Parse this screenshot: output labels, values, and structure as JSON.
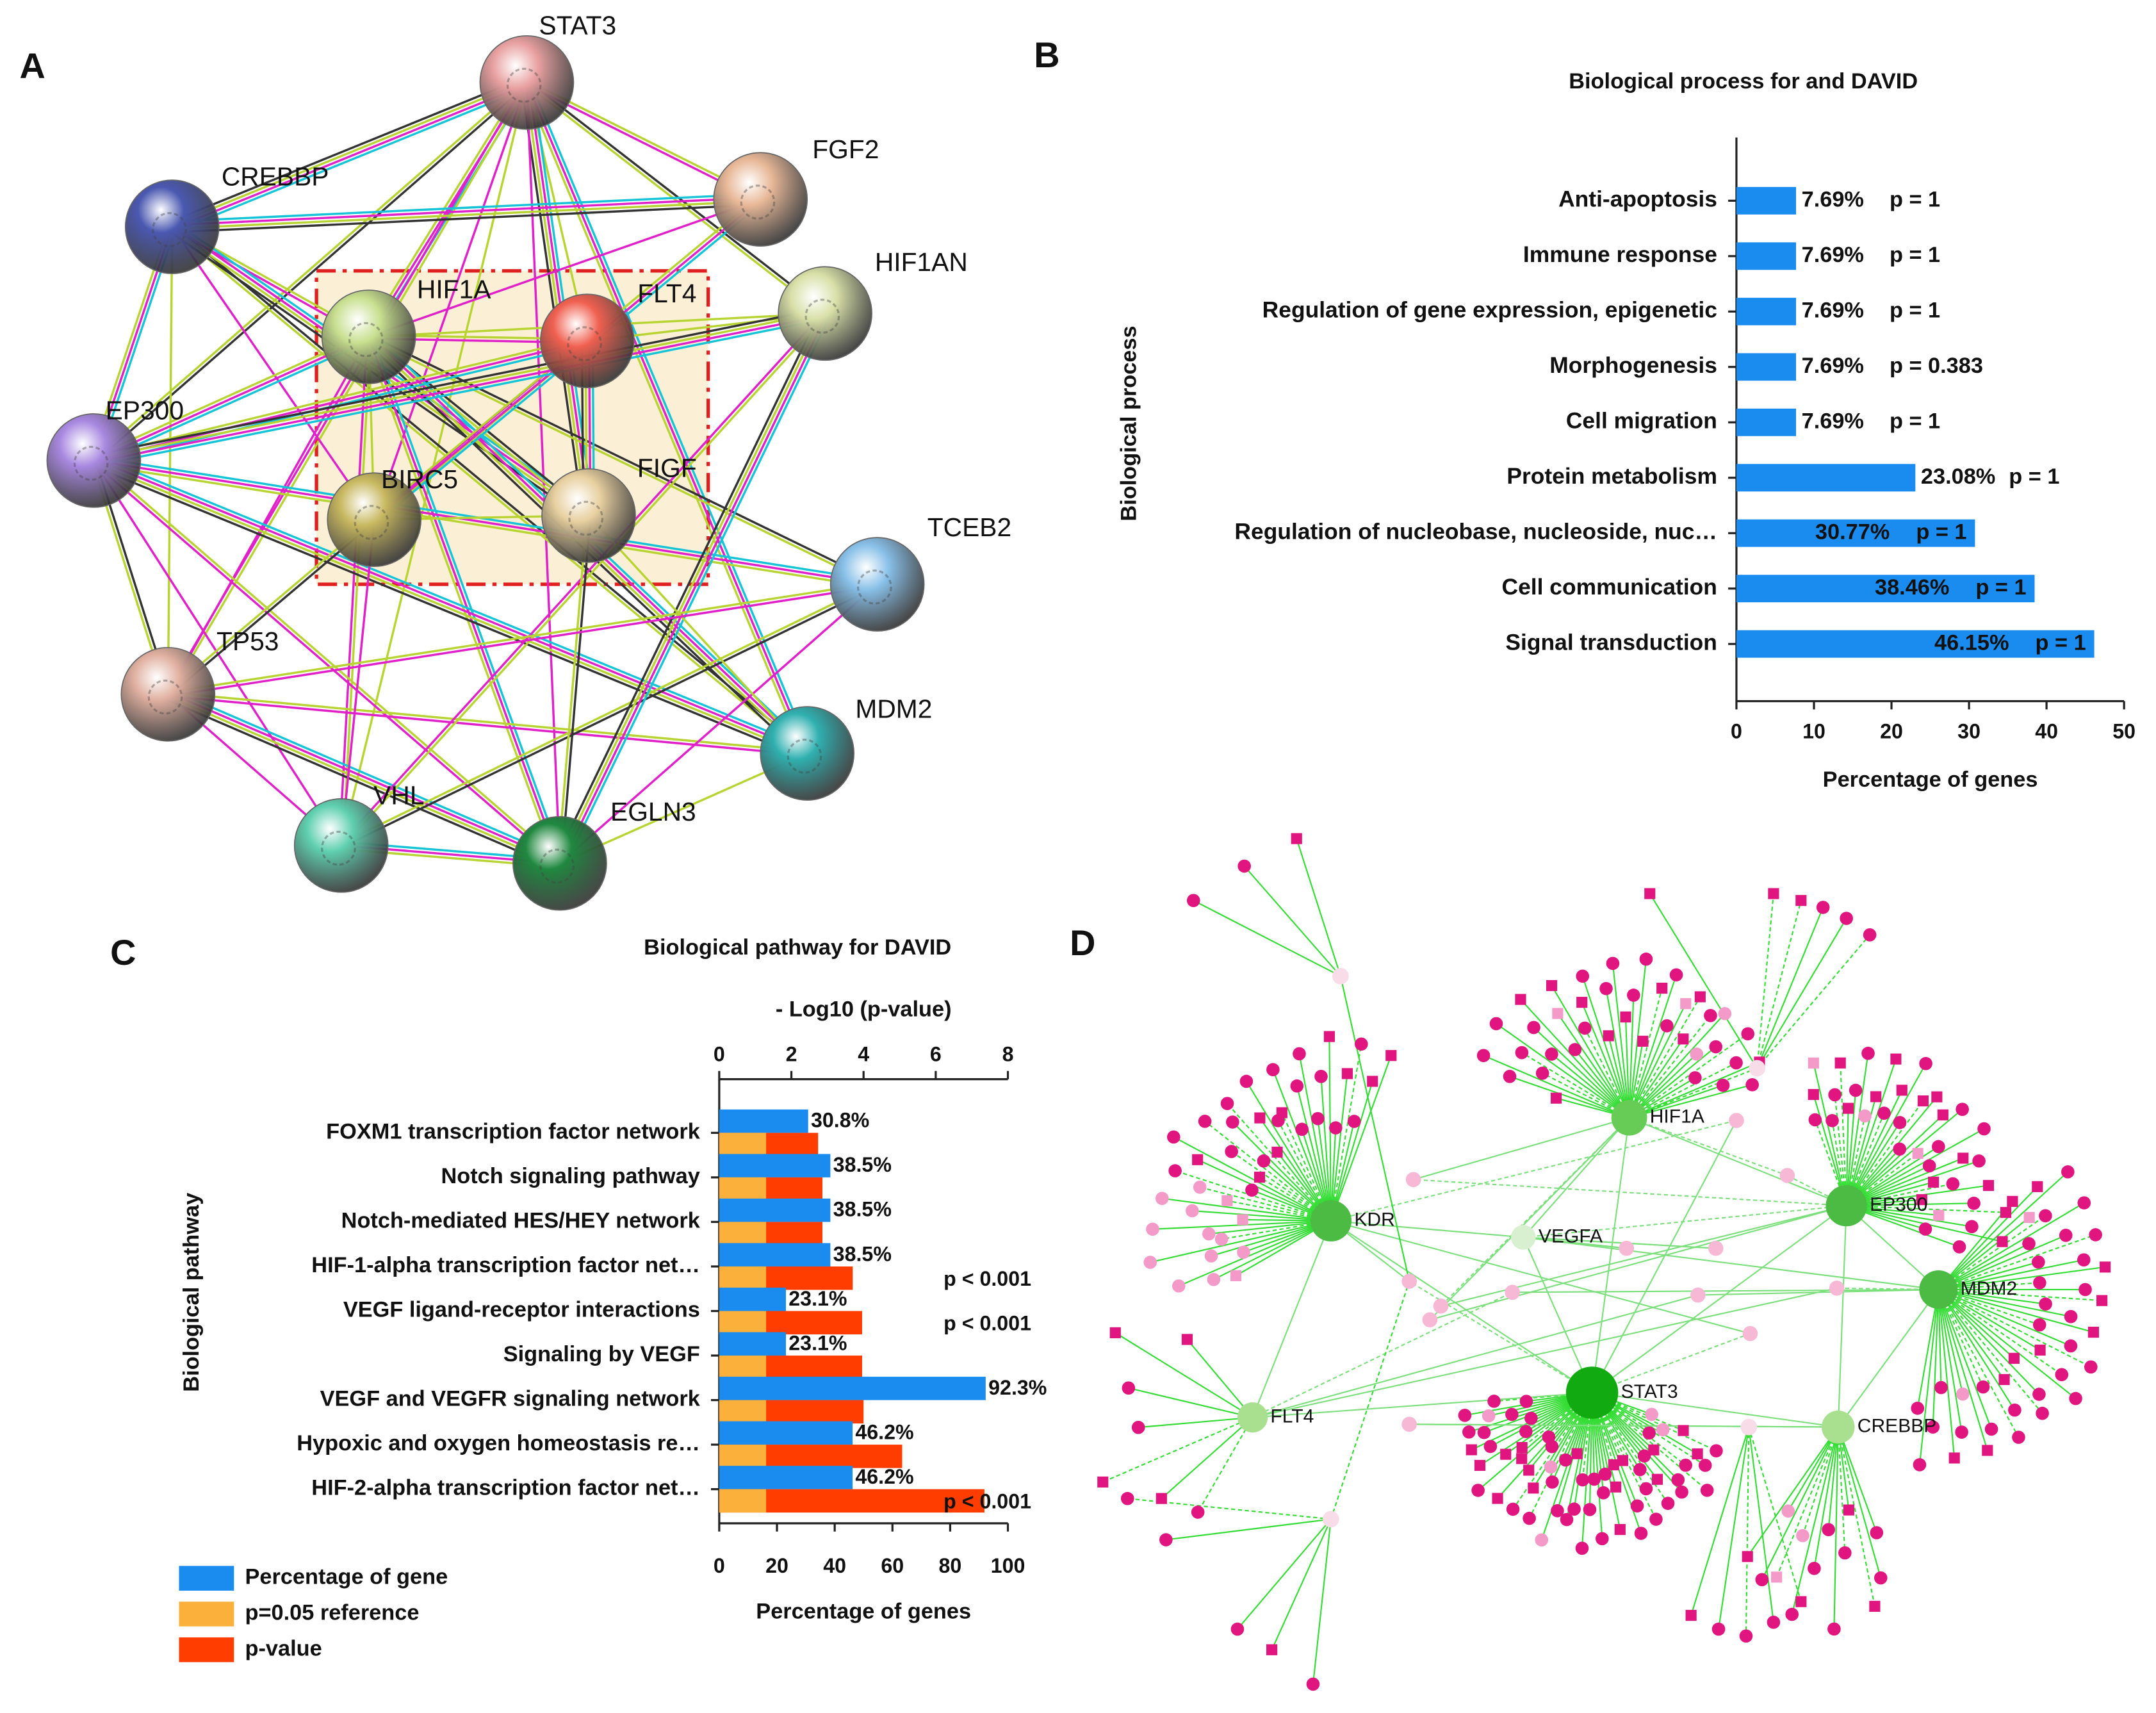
{
  "panel_labels": [
    "A",
    "B",
    "C",
    "D"
  ],
  "network_a": {
    "nodes": [
      "STAT3",
      "FGF2",
      "CREBBP",
      "HIF1AN",
      "HIF1A",
      "FLT4",
      "EP300",
      "BIRC5",
      "FIGF",
      "TCEB2",
      "TP53",
      "MDM2",
      "VHL",
      "EGLN3"
    ]
  },
  "network_d": {
    "hubs": [
      "HIF1A",
      "KDR",
      "EP300",
      "VEGFA",
      "MDM2",
      "STAT3",
      "FLT4",
      "CREBBP"
    ]
  },
  "chart_data": [
    {
      "type": "bar",
      "orientation": "horizontal",
      "title": "Biological process for  and DAVID",
      "y_label": "Biological process",
      "x_label": "Percentage of genes",
      "categories": [
        "Anti-apoptosis",
        "Immune response",
        "Regulation of gene expression, epigenetic",
        "Morphogenesis",
        "Cell migration",
        "Protein metabolism",
        "Regulation of nucleobase, nucleoside, nuc…",
        "Cell communication",
        "Signal transduction"
      ],
      "values": [
        7.69,
        7.69,
        7.69,
        7.69,
        7.69,
        23.08,
        30.77,
        38.46,
        46.15
      ],
      "value_labels": [
        "7.69%",
        "7.69%",
        "7.69%",
        "7.69%",
        "7.69%",
        "23.08%",
        "30.77%",
        "38.46%",
        "46.15%"
      ],
      "p_labels": [
        "p = 1",
        "p = 1",
        "p = 1",
        "p = 0.383",
        "p = 1",
        "p = 1",
        "p = 1",
        "p = 1",
        "p = 1"
      ],
      "color": "#1a8cf0",
      "xlim": [
        0,
        50
      ],
      "xticks": [
        0,
        10,
        20,
        30,
        40,
        50
      ]
    },
    {
      "type": "bar",
      "orientation": "horizontal",
      "title": "Biological pathway for DAVID",
      "y_label": "Biological pathway",
      "x_label": "Percentage of genes",
      "x2_label": "- Log10 (p-value)",
      "categories": [
        "FOXM1 transcription factor network",
        "Notch signaling pathway",
        "Notch-mediated HES/HEY network",
        "HIF-1-alpha transcription factor net…",
        "VEGF ligand-receptor interactions",
        "Signaling by VEGF",
        "VEGF and VEGFR signaling network",
        "Hypoxic and oxygen homeostasis re…",
        "HIF-2-alpha transcription factor net…"
      ],
      "series": [
        {
          "name": "Percentage of gene",
          "color": "#1a8cf0",
          "values": [
            30.8,
            38.5,
            38.5,
            38.5,
            23.1,
            23.1,
            92.3,
            46.2,
            46.2
          ],
          "value_labels": [
            "30.8%",
            "38.5%",
            "38.5%",
            "38.5%",
            "23.1%",
            "23.1%",
            "92.3%",
            "46.2%",
            "46.2%"
          ]
        },
        {
          "name": "p=0.05 reference",
          "color": "#fbb03b",
          "axis": "x2",
          "values": [
            1.3,
            1.3,
            1.3,
            1.3,
            1.3,
            1.3,
            1.3,
            1.3,
            1.3
          ]
        },
        {
          "name": "p-value",
          "color": "#ff3d00",
          "axis": "x2",
          "values": [
            2.74,
            2.86,
            2.86,
            3.7,
            3.96,
            3.96,
            4.0,
            5.07,
            7.35
          ]
        }
      ],
      "p_labels": [
        null,
        null,
        null,
        "p < 0.001",
        "p < 0.001",
        null,
        null,
        null,
        "p < 0.001"
      ],
      "xlim": [
        0,
        100
      ],
      "xticks": [
        0,
        20,
        40,
        60,
        80,
        100
      ],
      "x2lim": [
        0,
        8
      ],
      "x2ticks": [
        0,
        2,
        4,
        6,
        8
      ],
      "legend": "lower left"
    }
  ]
}
